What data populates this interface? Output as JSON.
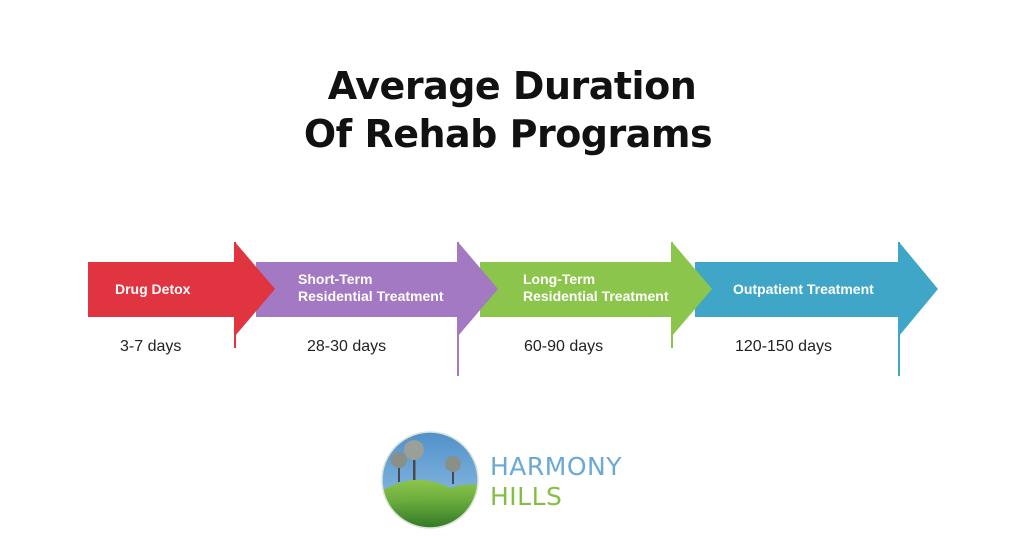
{
  "title": {
    "line1": "Average Duration",
    "line2": "Of Rehab Programs"
  },
  "stages": [
    {
      "name_line1": "Drug Detox",
      "name_line2": "",
      "duration": "3-7 days",
      "color": "#e03440"
    },
    {
      "name_line1": "Short-Term",
      "name_line2": "Residential Treatment",
      "duration": "28-30 days",
      "color": "#a279c2"
    },
    {
      "name_line1": "Long-Term",
      "name_line2": "Residential Treatment",
      "duration": "60-90 days",
      "color": "#8cc54b"
    },
    {
      "name_line1": "Outpatient Treatment",
      "name_line2": "",
      "duration": "120-150 days",
      "color": "#3fa6c8"
    }
  ],
  "brand": {
    "name_line1": "HARMONY",
    "name_line2": "HILLS",
    "color_primary": "#6aa8d6",
    "color_secondary": "#84bf45"
  }
}
